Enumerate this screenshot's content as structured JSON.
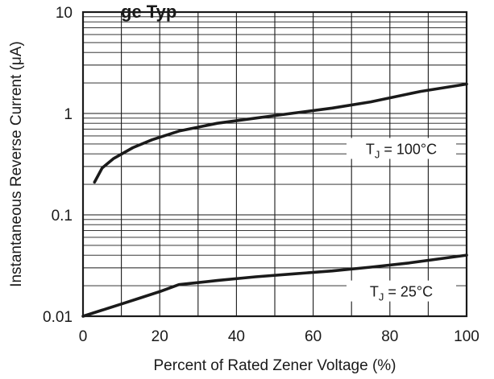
{
  "chart_data": {
    "type": "line",
    "title": "ge Typ",
    "xlabel": "Percent of Rated Zener Voltage (%)",
    "ylabel": "Instantaneous Reverse Current (μA)",
    "xlim": [
      0,
      100
    ],
    "ylim": [
      0.01,
      10
    ],
    "yscale": "log",
    "grid": true,
    "x_ticks": [
      0,
      20,
      40,
      60,
      80,
      100
    ],
    "x_tick_labels": [
      "0",
      "20",
      "40",
      "60",
      "80",
      "100"
    ],
    "y_ticks": [
      0.01,
      0.1,
      1,
      10
    ],
    "y_tick_labels": [
      "0.01",
      "0.1",
      "1",
      "10"
    ],
    "series": [
      {
        "name": "TJ = 100°C",
        "label_main": "T",
        "label_sub": "J",
        "label_rest": " = 100°C",
        "x": [
          3,
          5,
          8,
          13,
          18,
          25,
          35,
          45,
          55,
          65,
          75,
          88,
          100
        ],
        "y": [
          0.21,
          0.29,
          0.36,
          0.46,
          0.55,
          0.67,
          0.8,
          0.9,
          1.01,
          1.13,
          1.3,
          1.65,
          1.95
        ]
      },
      {
        "name": "TJ = 25°C",
        "label_main": "T",
        "label_sub": "J",
        "label_rest": " = 25°C",
        "x": [
          0,
          5,
          10,
          15,
          20,
          25,
          35,
          45,
          55,
          65,
          75,
          85,
          100
        ],
        "y": [
          0.01,
          0.0115,
          0.0132,
          0.0152,
          0.0175,
          0.0205,
          0.0225,
          0.0245,
          0.0262,
          0.028,
          0.0305,
          0.0335,
          0.04
        ]
      }
    ]
  }
}
